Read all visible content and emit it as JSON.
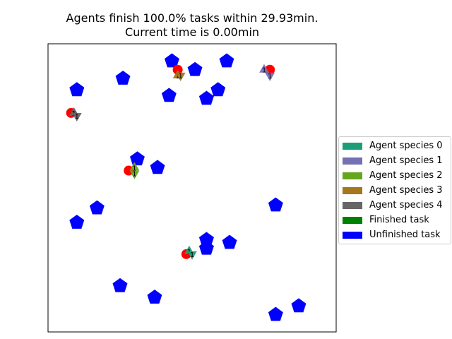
{
  "title": {
    "line1": "Agents finish 100.0% tasks within 29.93min.",
    "line2": "Current time is 0.00min"
  },
  "chart_data": {
    "type": "scatter",
    "title": "Agents finish 100.0% tasks within 29.93min. Current time is 0.00min",
    "xlim": [
      0,
      100
    ],
    "ylim": [
      0,
      100
    ],
    "grid": false,
    "axes_ticks": false,
    "legend_placement": "center-right-outside",
    "legend": [
      {
        "label": "Agent species 0",
        "color": "#1b9e77"
      },
      {
        "label": "Agent species 1",
        "color": "#7570b3"
      },
      {
        "label": "Agent species 2",
        "color": "#66a61e"
      },
      {
        "label": "Agent species 3",
        "color": "#a6761d"
      },
      {
        "label": "Agent species 4",
        "color": "#666666"
      },
      {
        "label": "Finished task",
        "color": "#008000"
      },
      {
        "label": "Unfinished task",
        "color": "#0000ff"
      }
    ],
    "unfinished_tasks": [
      {
        "x": 43,
        "y": 94
      },
      {
        "x": 51,
        "y": 91
      },
      {
        "x": 62,
        "y": 94
      },
      {
        "x": 26,
        "y": 88
      },
      {
        "x": 10,
        "y": 84
      },
      {
        "x": 42,
        "y": 82
      },
      {
        "x": 59,
        "y": 84
      },
      {
        "x": 55,
        "y": 81
      },
      {
        "x": 31,
        "y": 60
      },
      {
        "x": 38,
        "y": 57
      },
      {
        "x": 17,
        "y": 43
      },
      {
        "x": 10,
        "y": 38
      },
      {
        "x": 79,
        "y": 44
      },
      {
        "x": 55,
        "y": 32
      },
      {
        "x": 55,
        "y": 29
      },
      {
        "x": 63,
        "y": 31
      },
      {
        "x": 25,
        "y": 16
      },
      {
        "x": 37,
        "y": 12
      },
      {
        "x": 79,
        "y": 6
      },
      {
        "x": 87,
        "y": 9
      }
    ],
    "finished_tasks": [],
    "depots": [
      {
        "x": 45,
        "y": 91
      },
      {
        "x": 77,
        "y": 91
      },
      {
        "x": 8,
        "y": 76
      },
      {
        "x": 28,
        "y": 56
      },
      {
        "x": 48,
        "y": 27
      }
    ],
    "agents": [
      {
        "species": 0,
        "x": 49,
        "y": 28,
        "label": "1"
      },
      {
        "species": 0,
        "x": 50,
        "y": 27,
        "label": "1"
      },
      {
        "species": 1,
        "x": 75,
        "y": 91,
        "label": "1"
      },
      {
        "species": 1,
        "x": 77,
        "y": 89,
        "label": "1"
      },
      {
        "species": 2,
        "x": 30,
        "y": 57,
        "label": "1"
      },
      {
        "species": 2,
        "x": 30,
        "y": 55,
        "label": "1"
      },
      {
        "species": 3,
        "x": 45,
        "y": 89,
        "label": "1"
      },
      {
        "species": 3,
        "x": 46,
        "y": 89,
        "label": "1"
      },
      {
        "species": 4,
        "x": 9,
        "y": 76,
        "label": "1"
      },
      {
        "species": 4,
        "x": 10,
        "y": 75,
        "label": "1"
      }
    ]
  }
}
